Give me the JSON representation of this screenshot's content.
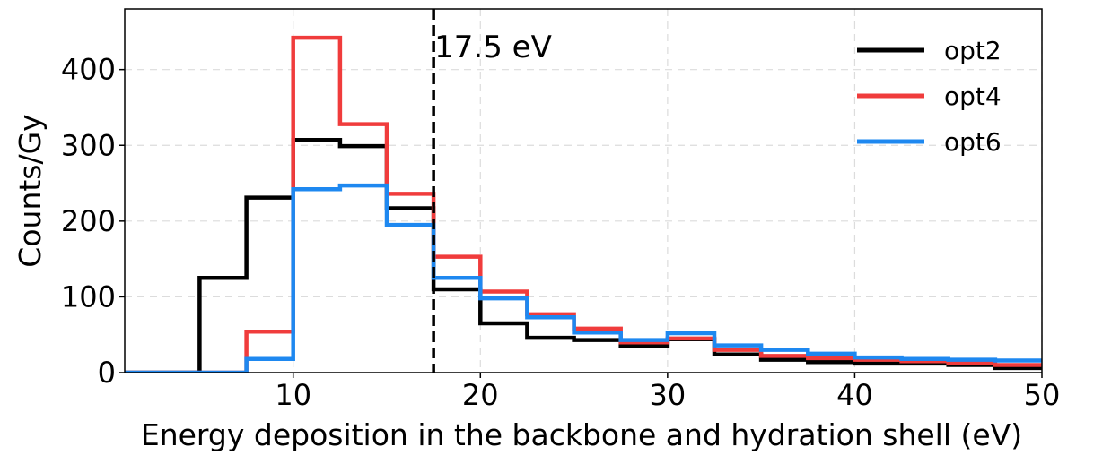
{
  "chart_data": {
    "type": "line",
    "title": "",
    "xlabel": "Energy deposition in the backbone and hydration shell (eV)",
    "ylabel": "Counts/Gy",
    "xlim": [
      1,
      50
    ],
    "ylim": [
      0,
      480
    ],
    "x_ticks": [
      10,
      20,
      30,
      40,
      50
    ],
    "y_ticks": [
      0,
      100,
      200,
      300,
      400
    ],
    "grid": true,
    "legend_position": "top-right",
    "bin_edges": [
      0,
      2.5,
      5,
      7.5,
      10,
      12.5,
      15,
      17.5,
      20,
      22.5,
      25,
      27.5,
      30,
      32.5,
      35,
      37.5,
      40,
      42.5,
      45,
      47.5,
      50
    ],
    "series": [
      {
        "name": "opt2",
        "color": "#000000",
        "values": [
          0,
          0,
          125,
          231,
          307,
          299,
          217,
          110,
          65,
          46,
          43,
          35,
          44,
          24,
          17,
          14,
          12,
          12,
          10,
          6
        ]
      },
      {
        "name": "opt4",
        "color": "#f03c3c",
        "values": [
          0,
          0,
          0,
          54,
          442,
          328,
          236,
          153,
          107,
          77,
          58,
          40,
          45,
          30,
          22,
          19,
          17,
          15,
          13,
          10
        ]
      },
      {
        "name": "opt6",
        "color": "#1e88f0",
        "values": [
          0,
          0,
          0,
          18,
          242,
          247,
          195,
          125,
          98,
          73,
          53,
          43,
          52,
          36,
          30,
          25,
          20,
          18,
          17,
          16
        ]
      }
    ],
    "annotation": {
      "x": 17.5,
      "label": "17.5 eV"
    }
  }
}
